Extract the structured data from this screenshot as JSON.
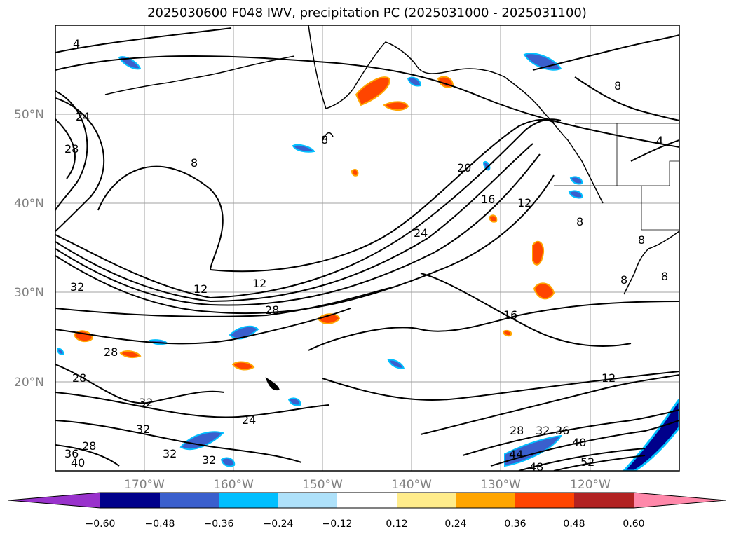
{
  "title": "2025030600 F048 IWV, precipitation PC (2025031000 - 2025031100)",
  "lat_labels": [
    "50°N",
    "40°N",
    "30°N",
    "20°N"
  ],
  "lon_labels": [
    "170°W",
    "160°W",
    "150°W",
    "140°W",
    "130°W",
    "120°W"
  ],
  "contour_labels": [
    "4",
    "24",
    "28",
    "8",
    "20",
    "16",
    "12",
    "24",
    "32",
    "12",
    "12",
    "28",
    "16",
    "28",
    "28",
    "12",
    "32",
    "24",
    "32",
    "28",
    "36",
    "40",
    "32",
    "32",
    "28",
    "32",
    "36",
    "40",
    "44",
    "48",
    "52",
    "8",
    "8",
    "4",
    "8",
    "8",
    "8",
    "8"
  ],
  "colorbar": {
    "ticks": [
      "−0.60",
      "−0.48",
      "−0.36",
      "−0.24",
      "−0.12",
      "0.12",
      "0.24",
      "0.36",
      "0.48",
      "0.60"
    ],
    "colors": [
      "#9932cc",
      "#00008b",
      "#3a5fcd",
      "#00bfff",
      "#aee1fa",
      "#ffffff",
      "#ffec8b",
      "#ffa500",
      "#ff4500",
      "#b22222",
      "#ff88aa"
    ]
  }
}
